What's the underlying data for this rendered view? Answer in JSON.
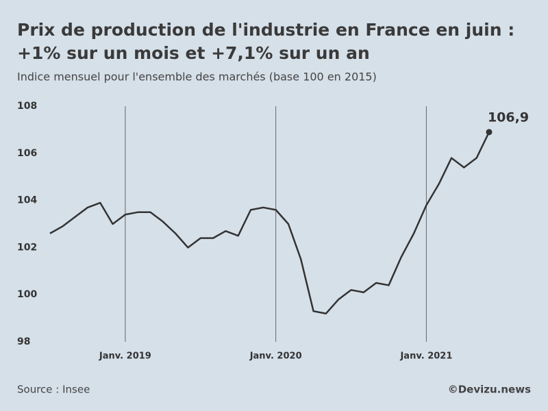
{
  "chart_data": {
    "type": "line",
    "title": [
      "Prix de production de l'industrie en France en juin :",
      "+1% sur un mois et +7,1% sur un an"
    ],
    "subtitle": "Indice mensuel pour l'ensemble des marchés (base 100 en 2015)",
    "source": "Source : Insee",
    "credit": "©Devizu.news",
    "categories": [
      null,
      null,
      null,
      null,
      null,
      null,
      "Janv. 2019",
      null,
      null,
      null,
      null,
      null,
      null,
      null,
      null,
      null,
      null,
      null,
      "Janv. 2020",
      null,
      null,
      null,
      null,
      null,
      null,
      null,
      null,
      null,
      null,
      null,
      "Janv. 2021",
      null,
      null,
      null,
      null,
      null
    ],
    "values": [
      102.6,
      102.9,
      103.3,
      103.7,
      103.9,
      103.0,
      103.4,
      103.5,
      103.5,
      103.1,
      102.6,
      102.0,
      102.4,
      102.4,
      102.7,
      102.5,
      103.6,
      103.7,
      103.6,
      103.0,
      101.5,
      99.3,
      99.2,
      99.8,
      100.2,
      100.1,
      100.5,
      100.4,
      101.6,
      102.6,
      103.8,
      104.7,
      105.8,
      105.4,
      105.8,
      106.9
    ],
    "value_labels": [
      null,
      null,
      null,
      null,
      null,
      null,
      null,
      null,
      null,
      null,
      null,
      null,
      null,
      null,
      null,
      null,
      null,
      null,
      null,
      null,
      null,
      null,
      null,
      null,
      null,
      null,
      null,
      null,
      null,
      null,
      null,
      null,
      null,
      null,
      null,
      "106,9"
    ],
    "color": "#333333",
    "ylim": [
      98,
      108
    ],
    "yticks": [
      98,
      100,
      102,
      104,
      106,
      108
    ]
  }
}
